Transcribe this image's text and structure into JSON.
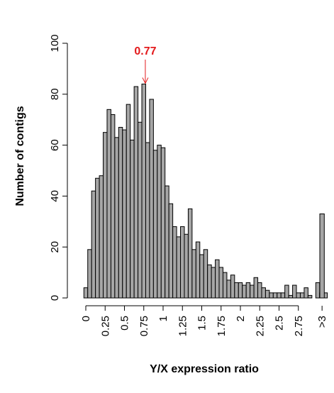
{
  "chart_data": {
    "type": "bar",
    "xlabel": "Y/X expression ratio",
    "ylabel": "Number of contigs",
    "ylim": [
      0,
      100
    ],
    "yticks": [
      0,
      20,
      40,
      60,
      80,
      100
    ],
    "xticks": [
      "0",
      "0.25",
      "0.5",
      "0.75",
      "1",
      "1.25",
      "1.5",
      "1.75",
      "2",
      "2.25",
      "2.5",
      "2.75",
      ">3"
    ],
    "bin_width": 0.05,
    "bins_start": -0.025,
    "values": [
      4,
      19,
      42,
      47,
      48,
      65,
      74,
      72,
      63,
      67,
      66,
      76,
      62,
      83,
      69,
      84,
      61,
      78,
      58,
      60,
      59,
      44,
      37,
      28,
      24,
      28,
      25,
      35,
      19,
      22,
      17,
      19,
      13,
      12,
      15,
      12,
      10,
      7,
      9,
      6,
      6,
      5,
      6,
      5,
      8,
      6,
      4,
      3,
      2,
      2,
      2,
      2,
      5,
      1,
      5,
      2,
      2,
      4,
      1,
      0,
      6,
      2,
      2
    ],
    "overflow_bar": {
      "label": ">3",
      "value": 33
    },
    "annotation": {
      "text": "0.77",
      "x": 0.77,
      "y": 84,
      "color": "#e31a1c"
    },
    "bar_color": "#a6a6a6",
    "grid": false
  }
}
